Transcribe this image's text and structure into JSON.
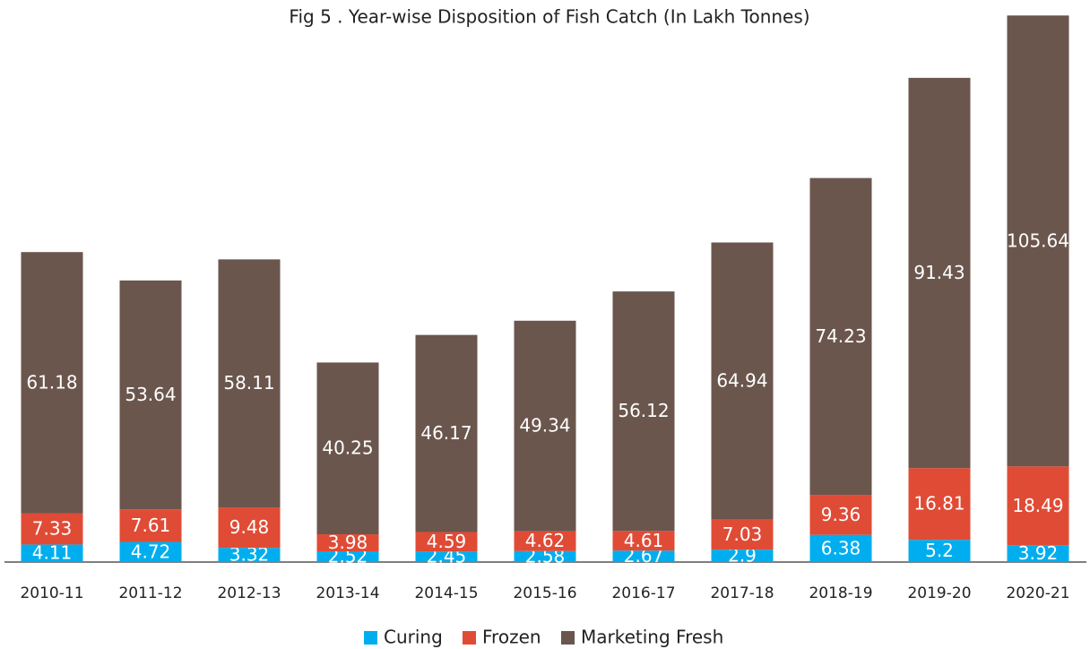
{
  "chart_data": {
    "type": "stacked_bar",
    "title": "Fig 5 . Year-wise Disposition of Fish Catch (In Lakh Tonnes)",
    "categories": [
      "2010-11",
      "2011-12",
      "2012-13",
      "2013-14",
      "2014-15",
      "2015-16",
      "2016-17",
      "2017-18",
      "2018-19",
      "2019-20",
      "2020-21"
    ],
    "series": [
      {
        "name": "Curing",
        "color": "#00aeef",
        "values": [
          4.11,
          4.72,
          3.32,
          2.52,
          2.45,
          2.58,
          2.67,
          2.9,
          6.38,
          5.2,
          3.92
        ]
      },
      {
        "name": "Frozen",
        "color": "#e04b36",
        "values": [
          7.33,
          7.61,
          9.48,
          3.98,
          4.59,
          4.62,
          4.61,
          7.03,
          9.36,
          16.81,
          18.49
        ]
      },
      {
        "name": "Marketing Fresh",
        "color": "#6b564d",
        "values": [
          61.18,
          53.64,
          58.11,
          40.25,
          46.17,
          49.34,
          56.12,
          64.94,
          74.23,
          91.43,
          105.64
        ]
      }
    ],
    "ylim": [
      0,
      130
    ]
  }
}
